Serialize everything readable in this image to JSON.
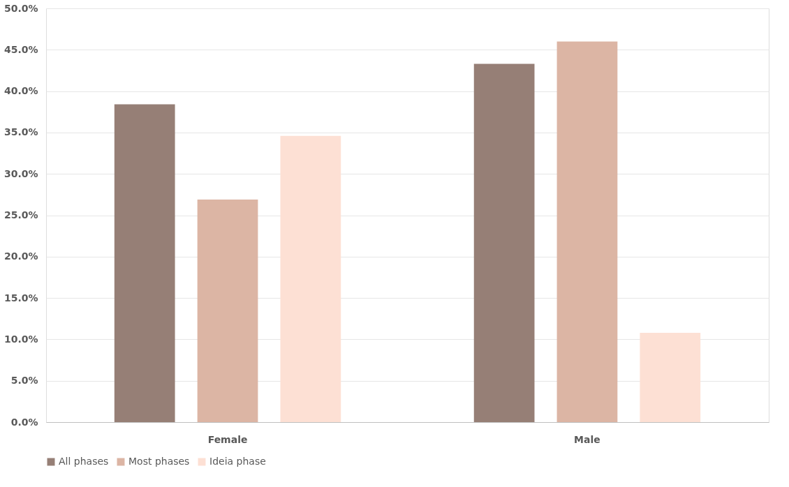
{
  "chart_data": {
    "type": "bar",
    "categories": [
      "Female",
      "Male"
    ],
    "series": [
      {
        "name": "All phases",
        "color": "#967f76",
        "values": [
          38.4,
          43.3
        ]
      },
      {
        "name": "Most phases",
        "color": "#dcb5a4",
        "values": [
          26.9,
          46.0
        ]
      },
      {
        "name": "Ideia phase",
        "color": "#fde0d4",
        "values": [
          34.6,
          10.8
        ]
      }
    ],
    "ylim": [
      0,
      50
    ],
    "yticks": [
      {
        "value": 0,
        "label": "0.0%"
      },
      {
        "value": 5,
        "label": "5.0%"
      },
      {
        "value": 10,
        "label": "10.0%"
      },
      {
        "value": 15,
        "label": "15.0%"
      },
      {
        "value": 20,
        "label": "20.0%"
      },
      {
        "value": 25,
        "label": "25.0%"
      },
      {
        "value": 30,
        "label": "30.0%"
      },
      {
        "value": 35,
        "label": "35.0%"
      },
      {
        "value": 40,
        "label": "40.0%"
      },
      {
        "value": 45,
        "label": "45.0%"
      },
      {
        "value": 50,
        "label": "50.0%"
      }
    ],
    "grid": "y",
    "legend": "bottom"
  }
}
